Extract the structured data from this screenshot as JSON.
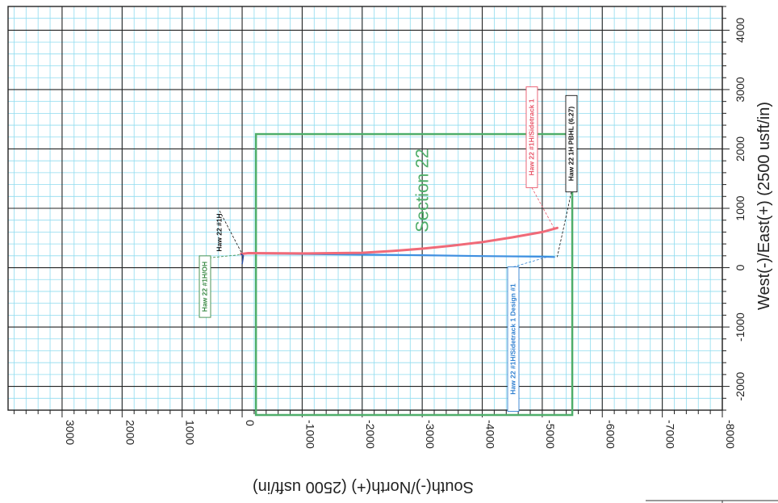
{
  "chart_data": {
    "type": "line",
    "orientation": "rotated-90",
    "title": "",
    "xlabel": "South(-)/North(+) (2500 usft/in)",
    "ylabel": "West(-)/East(+) (2500 usft/in)",
    "xlim": [
      3900,
      -8000
    ],
    "ylim": [
      -2400,
      4400
    ],
    "x_ticks": [
      3000,
      2000,
      1000,
      0,
      -1000,
      -2000,
      -3000,
      -4000,
      -5000,
      -6000,
      -7000,
      -8000
    ],
    "x_tick_labels": [
      "3000",
      "2000",
      "1000",
      "0",
      "-1000",
      "-2000",
      "-3000",
      "-4000",
      "-5000",
      "-6000",
      "-7000",
      "-8000"
    ],
    "y_ticks": [
      -2000,
      -1000,
      0,
      1000,
      2000,
      3000,
      4000
    ],
    "y_tick_labels": [
      "-2000",
      "-1000",
      "0",
      "1000",
      "2000",
      "3000",
      "4000"
    ],
    "grid": true,
    "section": {
      "label": "Section 22",
      "color": "#4fae6a",
      "ns_range": [
        -230,
        -5500
      ],
      "ew_range": [
        -2400,
        2250
      ]
    },
    "series": [
      {
        "name": "Haw 22 #1H/Sidetrack 1 Design #1",
        "color": "#3f8fe0",
        "points": [
          [
            20,
            230
          ],
          [
            -100,
            240
          ],
          [
            -1000,
            230
          ],
          [
            -2000,
            220
          ],
          [
            -3000,
            210
          ],
          [
            -4000,
            195
          ],
          [
            -5000,
            185
          ],
          [
            -5200,
            180
          ]
        ]
      },
      {
        "name": "Haw 22 #1H/Sidetrack 1",
        "color": "#f06a78",
        "points": [
          [
            20,
            230
          ],
          [
            -100,
            245
          ],
          [
            -1000,
            240
          ],
          [
            -2000,
            250
          ],
          [
            -2500,
            280
          ],
          [
            -3000,
            320
          ],
          [
            -3500,
            370
          ],
          [
            -4000,
            430
          ],
          [
            -4500,
            510
          ],
          [
            -5000,
            600
          ],
          [
            -5250,
            670
          ]
        ]
      }
    ],
    "annotations": [
      {
        "text": "Haw 22 #1H",
        "color": "#111111",
        "border": false
      },
      {
        "text": "Haw 22 #1H/OH",
        "color": "#3a8a45",
        "border": true
      },
      {
        "text": "Haw 22 #1H/Sidetrack 1 Design #1",
        "color": "#2f7fd0",
        "border": true
      },
      {
        "text": "Haw 22 #1H/Sidetrack 1",
        "color": "#e8576a",
        "border": true
      },
      {
        "text": "Haw 22 1H PBHL (6.27)",
        "color": "#111111",
        "border": true
      }
    ]
  },
  "colors": {
    "minor_grid": "#8fdcef",
    "major_grid": "#222222",
    "section": "#4fae6a",
    "design_line": "#3f8fe0",
    "sidetrack_line": "#f06a78"
  }
}
